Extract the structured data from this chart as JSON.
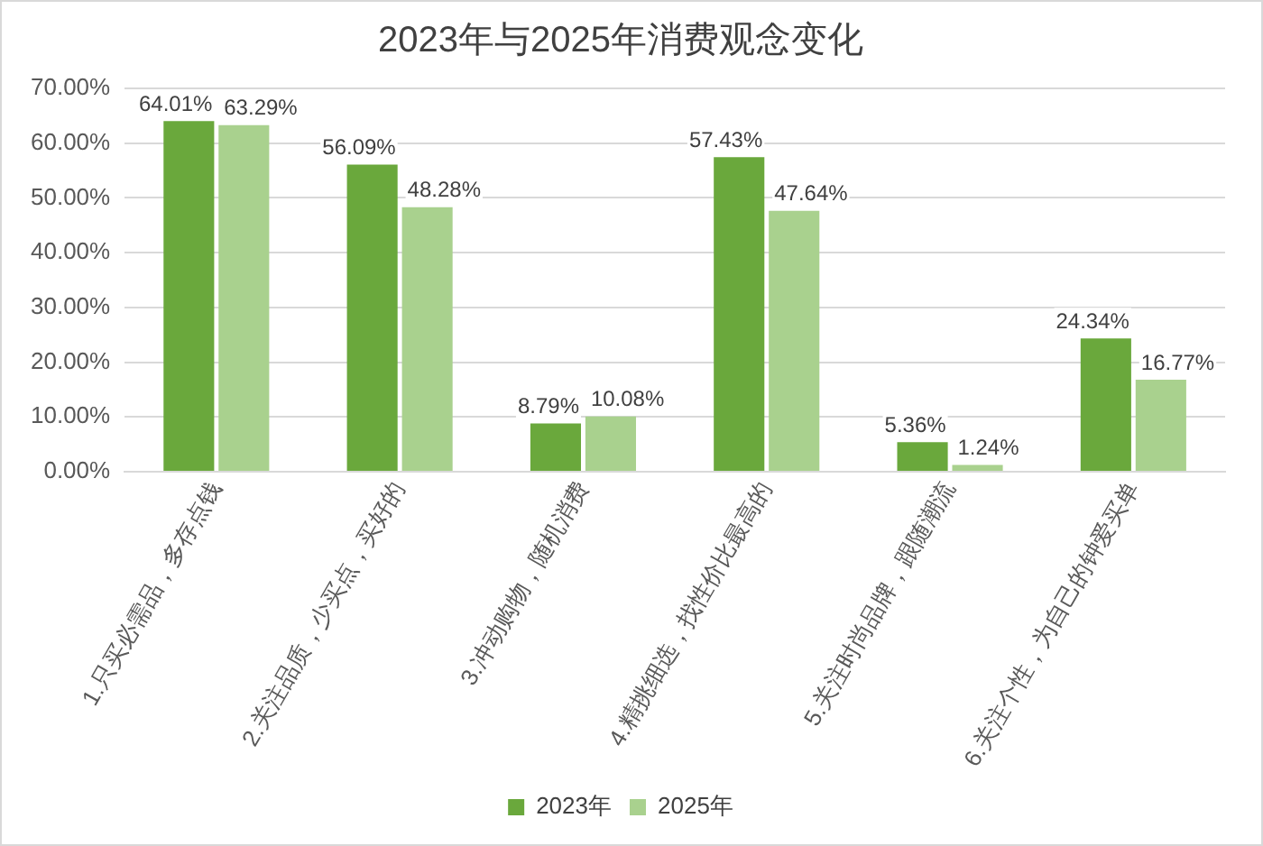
{
  "chart_data": {
    "type": "bar",
    "title": "2023年与2025年消费观念变化",
    "categories": [
      "1.只买必需品，多存点钱",
      "2.关注品质，少买点，买好的",
      "3.冲动购物，随机消费",
      "4.精挑细选，找性价比最高的",
      "5.关注时尚品牌，跟随潮流",
      "6.关注个性，为自己的钟爱买单"
    ],
    "series": [
      {
        "name": "2023年",
        "color": "#6aa83c",
        "values": [
          64.01,
          56.09,
          8.79,
          57.43,
          5.36,
          24.34
        ],
        "value_labels": [
          "64.01%",
          "56.09%",
          "8.79%",
          "57.43%",
          "5.36%",
          "24.34%"
        ]
      },
      {
        "name": "2025年",
        "color": "#a9d18e",
        "values": [
          63.29,
          48.28,
          10.08,
          47.64,
          1.24,
          16.77
        ],
        "value_labels": [
          "63.29%",
          "48.28%",
          "10.08%",
          "47.64%",
          "1.24%",
          "16.77%"
        ]
      }
    ],
    "ylim": [
      0,
      70
    ],
    "yticks": [
      {
        "value": 0,
        "label": "0.00%"
      },
      {
        "value": 10,
        "label": "10.00%"
      },
      {
        "value": 20,
        "label": "20.00%"
      },
      {
        "value": 30,
        "label": "30.00%"
      },
      {
        "value": 40,
        "label": "40.00%"
      },
      {
        "value": 50,
        "label": "50.00%"
      },
      {
        "value": 60,
        "label": "60.00%"
      },
      {
        "value": 70,
        "label": "70.00%"
      }
    ],
    "grid": "y",
    "legend": "bottom"
  }
}
